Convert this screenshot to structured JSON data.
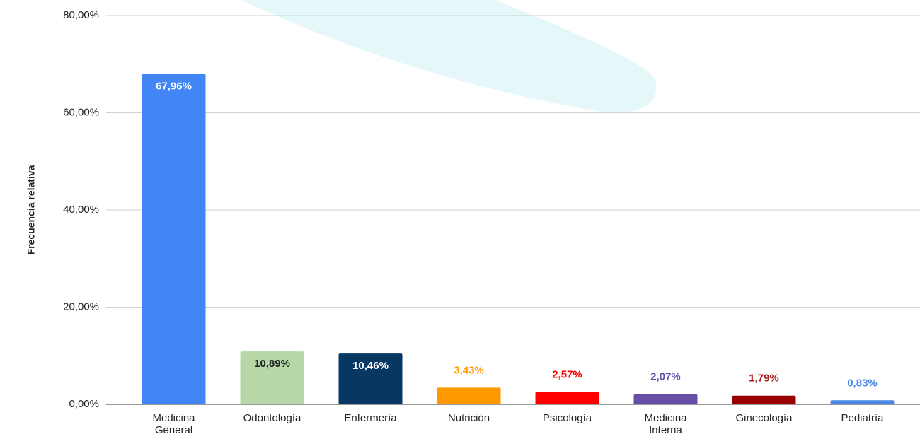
{
  "chart_data": {
    "type": "bar",
    "y_axis_label": "Frecuencia relativa",
    "categories": [
      "Medicina General",
      "Odontología",
      "Enfermería",
      "Nutrición",
      "Psicología",
      "Medicina Interna",
      "Ginecología",
      "Pediatría"
    ],
    "values": [
      67.96,
      10.89,
      10.46,
      3.43,
      2.57,
      2.07,
      1.79,
      0.83
    ],
    "value_labels": [
      "67,96%",
      "10,89%",
      "10,46%",
      "3,43%",
      "2,57%",
      "2,07%",
      "1,79%",
      "0,83%"
    ],
    "colors": [
      "#4285f4",
      "#b6d7a8",
      "#073763",
      "#ff9900",
      "#ff0000",
      "#674ea7",
      "#990000",
      "#4a86e8"
    ],
    "label_colors": [
      "#ffffff",
      "#222222",
      "#ffffff",
      "#ff9900",
      "#ff0000",
      "#674ea7",
      "#a61c1c",
      "#4a86e8"
    ],
    "ylim": [
      0,
      80
    ],
    "yticks": [
      {
        "value": 0,
        "label": "0,00%"
      },
      {
        "value": 20,
        "label": "20,00%"
      },
      {
        "value": 40,
        "label": "40,00%"
      },
      {
        "value": 60,
        "label": "60,00%"
      },
      {
        "value": 80,
        "label": "80,00%"
      }
    ],
    "grid": true
  }
}
